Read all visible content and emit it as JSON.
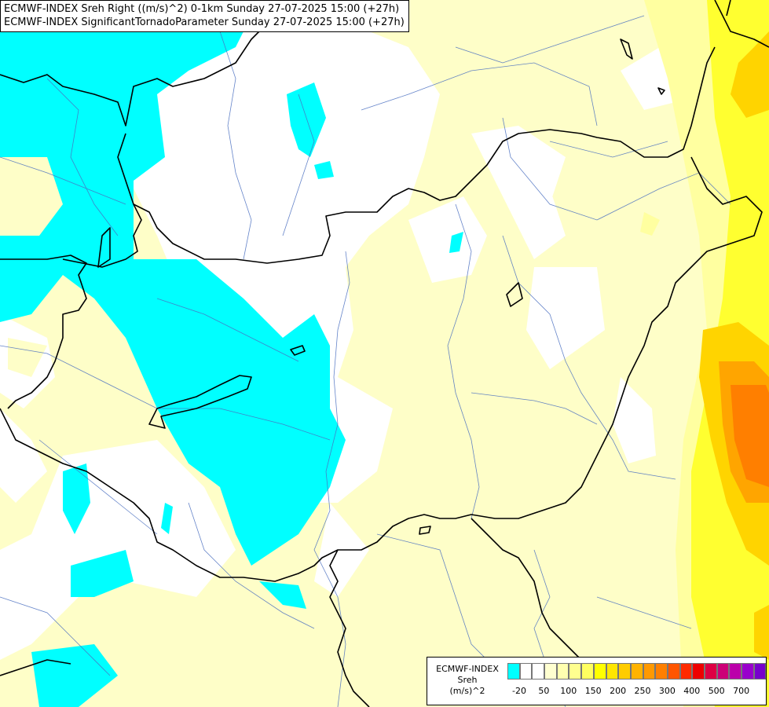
{
  "title": {
    "line1": "ECMWF-INDEX Sreh Right ((m/s)^2) 0-1km Sunday 27-07-2025 15:00 (+27h)",
    "line2": "ECMWF-INDEX SignificantTornadoParameter Sunday 27-07-2025 15:00 (+27h)"
  },
  "legend": {
    "line1": "ECMWF-INDEX",
    "line2": "Sreh",
    "line3": "(m/s)^2",
    "colors": [
      "#00ffff",
      "#ffffff",
      "#ffffff",
      "#ffffd0",
      "#ffffb0",
      "#ffff90",
      "#ffff60",
      "#ffff00",
      "#ffe600",
      "#ffcc00",
      "#ffb300",
      "#ff9900",
      "#ff7f00",
      "#ff5500",
      "#ff2a00",
      "#ee0000",
      "#dd0044",
      "#cc0077",
      "#bb00aa",
      "#9900cc",
      "#7700cc",
      "#5500aa",
      "#330088",
      "#000066"
    ],
    "ticks": [
      {
        "label": "-20",
        "index": 1
      },
      {
        "label": "50",
        "index": 3
      },
      {
        "label": "100",
        "index": 5
      },
      {
        "label": "150",
        "index": 7
      },
      {
        "label": "200",
        "index": 9
      },
      {
        "label": "250",
        "index": 11
      },
      {
        "label": "300",
        "index": 13
      },
      {
        "label": "400",
        "index": 15
      },
      {
        "label": "500",
        "index": 17
      },
      {
        "label": "700",
        "index": 19
      }
    ]
  },
  "map_colors": {
    "cyan": "#00ffff",
    "white": "#ffffff",
    "pale": "#fefec8",
    "light_yellow": "#ffffa0",
    "yellow": "#ffff30",
    "gold": "#ffd400",
    "orange": "#ffa500",
    "dark_orange": "#ff7f00"
  }
}
